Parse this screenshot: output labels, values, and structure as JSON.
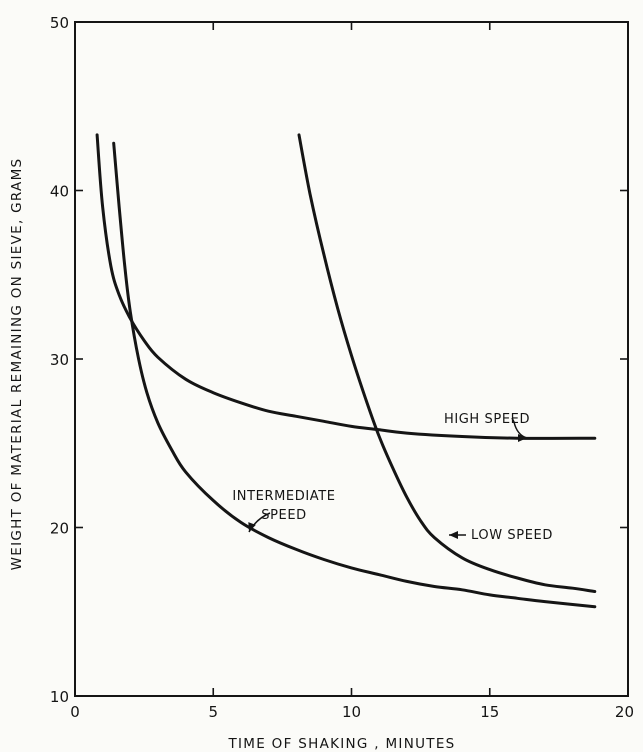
{
  "chart_data": {
    "type": "line",
    "title": "",
    "xlabel": "TIME OF SHAKING , MINUTES",
    "ylabel": "WEIGHT OF MATERIAL REMAINING ON SIEVE, GRAMS",
    "xlim": [
      0,
      20
    ],
    "ylim": [
      10,
      50
    ],
    "xticks": [
      0,
      5,
      10,
      15,
      20
    ],
    "yticks": [
      10,
      20,
      30,
      40,
      50
    ],
    "xtick_labels": [
      "0",
      "5",
      "10",
      "15",
      "20"
    ],
    "ytick_labels": [
      "10",
      "20",
      "30",
      "40",
      "50"
    ],
    "grid": false,
    "legend": "none",
    "series": [
      {
        "name": "HIGH SPEED",
        "x": [
          0.8,
          1.0,
          1.3,
          1.6,
          2.0,
          2.5,
          3.0,
          4.0,
          5.0,
          6.0,
          7.0,
          8.0,
          9.0,
          10.0,
          11.0,
          12.0,
          14.0,
          16.0,
          18.8
        ],
        "y": [
          43.3,
          39.0,
          35.5,
          33.8,
          32.4,
          31.1,
          30.1,
          28.8,
          28.0,
          27.4,
          26.9,
          26.6,
          26.3,
          26.0,
          25.8,
          25.6,
          25.4,
          25.3,
          25.3
        ]
      },
      {
        "name": "INTERMEDIATE SPEED",
        "x": [
          1.4,
          1.6,
          1.8,
          2.0,
          2.3,
          2.6,
          3.0,
          3.5,
          4.0,
          5.0,
          6.0,
          7.0,
          8.0,
          9.0,
          10.0,
          11.0,
          12.0,
          13.0,
          14.0,
          15.0,
          16.0,
          17.0,
          18.8
        ],
        "y": [
          42.8,
          39.0,
          35.5,
          32.8,
          30.0,
          28.0,
          26.2,
          24.6,
          23.3,
          21.6,
          20.3,
          19.4,
          18.7,
          18.1,
          17.6,
          17.2,
          16.8,
          16.5,
          16.3,
          16.0,
          15.8,
          15.6,
          15.3
        ]
      },
      {
        "name": "LOW SPEED",
        "x": [
          8.1,
          8.5,
          9.0,
          9.5,
          10.0,
          10.5,
          11.0,
          11.5,
          12.0,
          12.5,
          13.0,
          14.0,
          15.0,
          16.0,
          17.0,
          18.0,
          18.8
        ],
        "y": [
          43.3,
          39.8,
          36.2,
          33.0,
          30.2,
          27.7,
          25.4,
          23.5,
          21.8,
          20.4,
          19.4,
          18.2,
          17.5,
          17.0,
          16.6,
          16.4,
          16.2
        ]
      }
    ],
    "annotations": [
      {
        "series": "HIGH SPEED",
        "lines": [
          "HIGH SPEED"
        ],
        "anchor": "middle"
      },
      {
        "series": "INTERMEDIATE SPEED",
        "lines": [
          "INTERMEDIATE",
          "SPEED"
        ],
        "anchor": "middle"
      },
      {
        "series": "LOW SPEED",
        "lines": [
          "LOW SPEED"
        ],
        "anchor": "start"
      }
    ]
  }
}
